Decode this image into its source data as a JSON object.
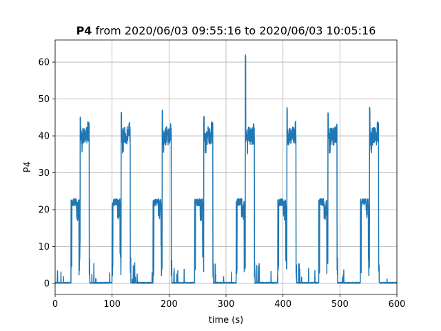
{
  "chart_data": {
    "type": "line",
    "title_bold": "P4",
    "title_rest": " from 2020/06/03 09:55:16 to 2020/06/03 10:05:16",
    "xlabel": "time (s)",
    "ylabel": "P4",
    "xlim": [
      0,
      600
    ],
    "ylim": [
      -3,
      66
    ],
    "x_ticks": [
      0,
      100,
      200,
      300,
      400,
      500,
      600
    ],
    "y_ticks": [
      0,
      10,
      20,
      30,
      40,
      50,
      60
    ],
    "grid": true,
    "series_color": "#1f77b4",
    "cycle": {
      "period_s": 72.4,
      "starts_s": [
        28,
        100,
        172,
        245,
        318,
        391,
        463,
        536
      ],
      "low_level": 22,
      "high_level": 40,
      "spike_max": [
        46.5,
        46.5,
        47.2,
        46.3,
        63.2,
        47.8,
        47,
        49
      ]
    }
  }
}
